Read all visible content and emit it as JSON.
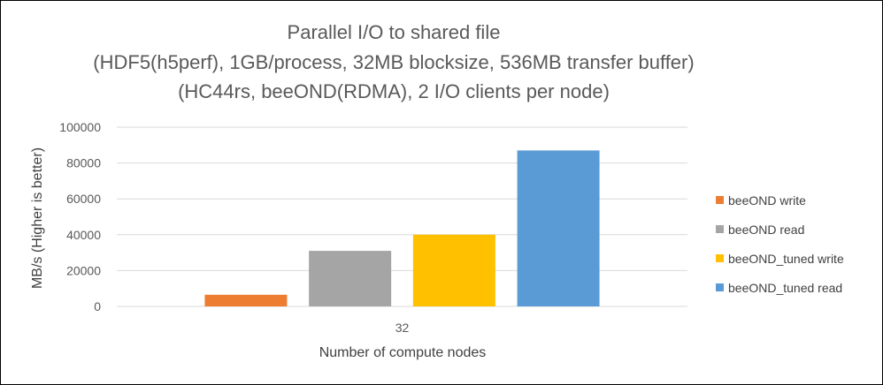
{
  "chart_data": {
    "type": "bar",
    "title_lines": [
      "Parallel I/O to shared file",
      "(HDF5(h5perf), 1GB/process, 32MB blocksize, 536MB transfer buffer)",
      "(HC44rs, beeOND(RDMA), 2 I/O clients per node)"
    ],
    "xlabel": "Number of compute nodes",
    "ylabel": "MB/s (Higher is better)",
    "categories": [
      "32"
    ],
    "ylim": [
      0,
      100000
    ],
    "yticks": [
      0,
      20000,
      40000,
      60000,
      80000,
      100000
    ],
    "grid": true,
    "legend_position": "right",
    "series": [
      {
        "name": "beeOND write",
        "color": "#ED7D31",
        "values": [
          6500
        ]
      },
      {
        "name": "beeOND read",
        "color": "#A5A5A5",
        "values": [
          31000
        ]
      },
      {
        "name": "beeOND_tuned write",
        "color": "#FFC000",
        "values": [
          40000
        ]
      },
      {
        "name": "beeOND_tuned read",
        "color": "#5B9BD5",
        "values": [
          87000
        ]
      }
    ]
  }
}
